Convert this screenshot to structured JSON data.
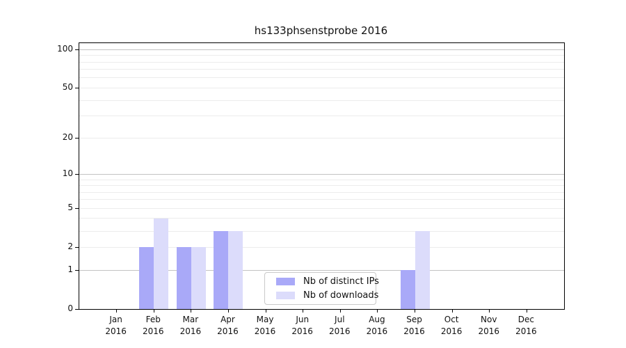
{
  "chart_data": {
    "type": "bar",
    "title": "hs133phsenstprobe 2016",
    "x_months": [
      "Jan",
      "Feb",
      "Mar",
      "Apr",
      "May",
      "Jun",
      "Jul",
      "Aug",
      "Sep",
      "Oct",
      "Nov",
      "Dec"
    ],
    "x_year": "2016",
    "series": [
      {
        "name": "Nb of distinct IPs",
        "color": "#a9a9f8",
        "values": [
          0,
          2,
          2,
          3,
          0,
          0,
          0,
          0,
          1,
          0,
          0,
          0
        ]
      },
      {
        "name": "Nb of downloads",
        "color": "#dcdcfb",
        "values": [
          0,
          4,
          2,
          3,
          0,
          0,
          0,
          0,
          3,
          0,
          0,
          0
        ]
      }
    ],
    "yscale": "log10(1+x)",
    "ylim": [
      0,
      112
    ],
    "yticks": [
      0,
      1,
      2,
      5,
      10,
      20,
      50,
      100
    ],
    "y_major_gridlines": [
      1,
      10,
      100
    ],
    "y_minor_gridlines": [
      2,
      3,
      4,
      5,
      6,
      7,
      8,
      9,
      20,
      30,
      40,
      50,
      60,
      70,
      80,
      90
    ],
    "grid": "on",
    "legend_position": "lower center inside",
    "colors": {
      "bar_distinct_ips": "#a9a9f8",
      "bar_downloads": "#dcdcfb",
      "major_grid": "#c3c3c3",
      "minor_grid": "#ececec",
      "axis": "#000000",
      "text": "#111111",
      "legend_border": "#c9c9c9"
    }
  }
}
